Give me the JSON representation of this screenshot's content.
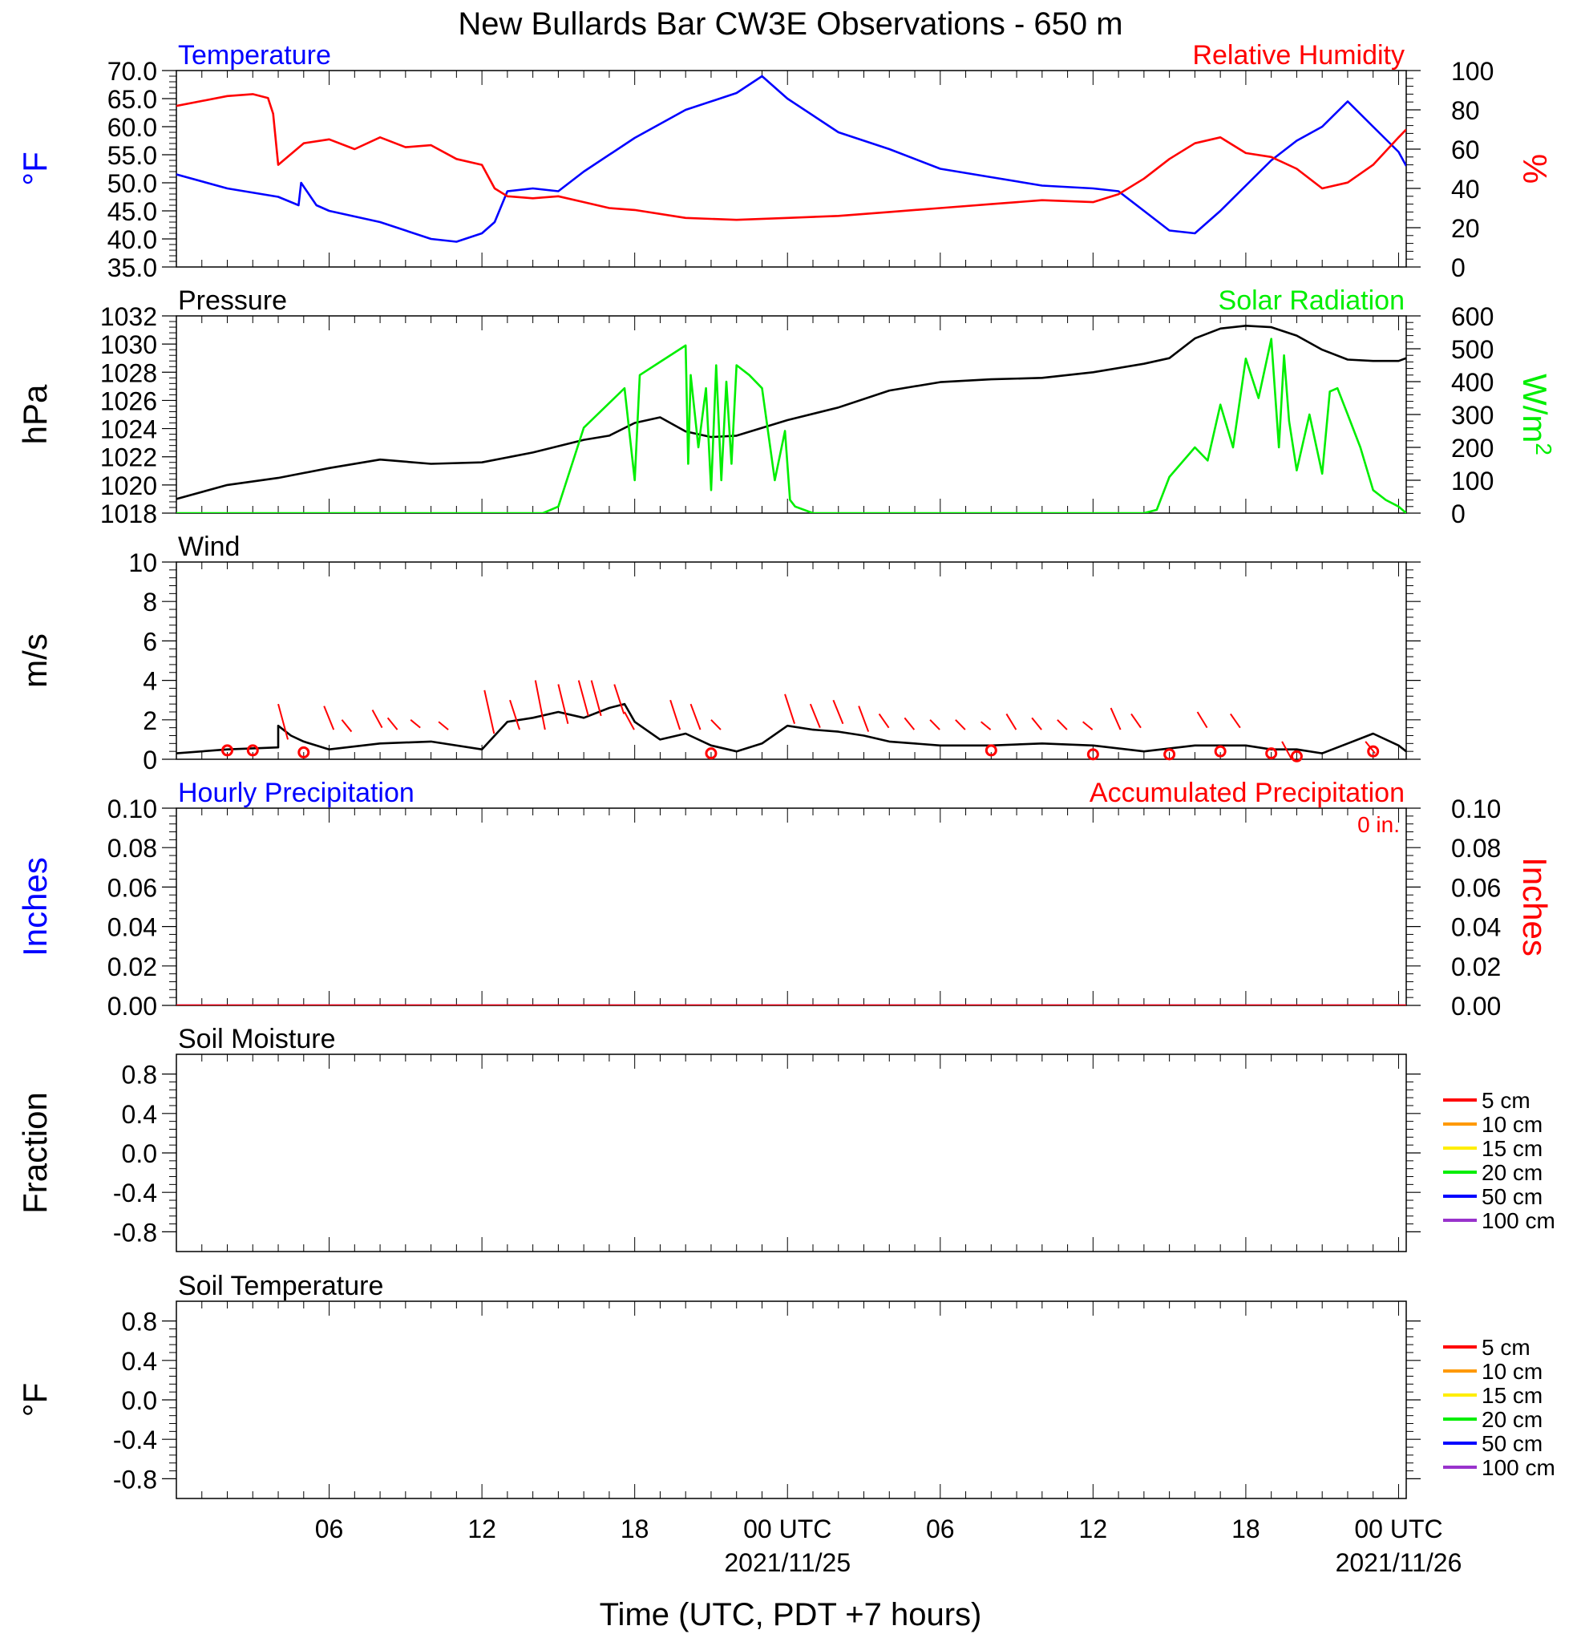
{
  "title": "New Bullards Bar CW3E Observations - 650 m",
  "xlabel": "Time (UTC, PDT +7 hours)",
  "x_ticks": [
    {
      "hour": 6,
      "label": "06",
      "date": ""
    },
    {
      "hour": 12,
      "label": "12",
      "date": ""
    },
    {
      "hour": 18,
      "label": "18",
      "date": ""
    },
    {
      "hour": 24,
      "label": "00 UTC",
      "date": "2021/11/25"
    },
    {
      "hour": 30,
      "label": "06",
      "date": ""
    },
    {
      "hour": 36,
      "label": "12",
      "date": ""
    },
    {
      "hour": 42,
      "label": "18",
      "date": ""
    },
    {
      "hour": 48,
      "label": "00 UTC",
      "date": "2021/11/26"
    }
  ],
  "colors": {
    "blue": "#0000ff",
    "red": "#ff0000",
    "green": "#00ee00",
    "black": "#000000"
  },
  "chart_data": [
    {
      "type": "line",
      "panel": "temperature-humidity",
      "x_range_hours": [
        0,
        48.3
      ],
      "left": {
        "title": "Temperature",
        "ylabel": "°F",
        "ylim": [
          35,
          70
        ],
        "ticks": [
          "35.0",
          "40.0",
          "45.0",
          "50.0",
          "55.0",
          "60.0",
          "65.0",
          "70.0"
        ]
      },
      "right": {
        "title": "Relative Humidity",
        "ylabel": "%",
        "ylim": [
          0,
          100
        ],
        "ticks": [
          "0",
          "20",
          "40",
          "60",
          "80",
          "100"
        ]
      },
      "series": [
        {
          "name": "Temperature",
          "axis": "left",
          "color": "#0000ff",
          "x": [
            0,
            2,
            4,
            4.8,
            4.9,
            5.5,
            6,
            8,
            10,
            11,
            12,
            12.5,
            13,
            14,
            15,
            16,
            18,
            20,
            22,
            23,
            24,
            26,
            28,
            30,
            32,
            34,
            36,
            37,
            38,
            39,
            40,
            41,
            42,
            43,
            44,
            45,
            46,
            47,
            48,
            48.3
          ],
          "y": [
            51.5,
            49,
            47.5,
            46,
            50,
            46,
            45,
            43,
            40,
            39.5,
            41,
            43,
            48.5,
            49,
            48.5,
            52,
            58,
            63,
            66,
            69,
            65,
            59,
            56,
            52.5,
            51,
            49.5,
            49,
            48.5,
            45,
            41.5,
            41,
            45,
            49.5,
            54,
            57.5,
            60,
            64.5,
            60,
            55.5,
            53
          ]
        },
        {
          "name": "Relative Humidity",
          "axis": "right",
          "color": "#ff0000",
          "x": [
            0,
            2,
            3,
            3.6,
            3.8,
            4,
            5,
            6,
            7,
            8,
            9,
            10,
            11,
            12,
            12.5,
            13,
            14,
            15,
            16,
            17,
            18,
            20,
            22,
            24,
            26,
            28,
            30,
            32,
            34,
            36,
            37,
            38,
            39,
            40,
            41,
            42,
            43,
            44,
            45,
            46,
            47,
            48,
            48.3
          ],
          "y": [
            82,
            87,
            88,
            86,
            78,
            52,
            63,
            65,
            60,
            66,
            61,
            62,
            55,
            52,
            40,
            36,
            35,
            36,
            33,
            30,
            29,
            25,
            24,
            25,
            26,
            28,
            30,
            32,
            34,
            33,
            37,
            45,
            55,
            63,
            66,
            58,
            56,
            50,
            40,
            43,
            52,
            66,
            70
          ]
        }
      ]
    },
    {
      "type": "line",
      "panel": "pressure-solar",
      "x_range_hours": [
        0,
        48.3
      ],
      "left": {
        "title": "Pressure",
        "ylabel": "hPa",
        "ylim": [
          1018,
          1032
        ],
        "ticks": [
          "1018",
          "1020",
          "1022",
          "1024",
          "1026",
          "1028",
          "1030",
          "1032"
        ]
      },
      "right": {
        "title": "Solar Radiation",
        "ylabel": "W/m",
        "ylabel_sup": "2",
        "ylim": [
          0,
          600
        ],
        "ticks": [
          "0",
          "100",
          "200",
          "300",
          "400",
          "500",
          "600"
        ]
      },
      "series": [
        {
          "name": "Pressure",
          "axis": "left",
          "color": "#000000",
          "x": [
            0,
            2,
            4,
            6,
            8,
            10,
            12,
            14,
            16,
            17,
            18,
            19,
            20,
            21,
            22,
            24,
            26,
            28,
            30,
            32,
            34,
            36,
            38,
            39,
            40,
            41,
            42,
            43,
            44,
            45,
            46,
            47,
            48,
            48.3
          ],
          "y": [
            1019,
            1020,
            1020.5,
            1021.2,
            1021.8,
            1021.5,
            1021.6,
            1022.3,
            1023.2,
            1023.5,
            1024.4,
            1024.8,
            1023.8,
            1023.4,
            1023.5,
            1024.6,
            1025.5,
            1026.7,
            1027.3,
            1027.5,
            1027.6,
            1028,
            1028.6,
            1029,
            1030.4,
            1031.1,
            1031.3,
            1031.2,
            1030.6,
            1029.6,
            1028.9,
            1028.8,
            1028.8,
            1029
          ]
        },
        {
          "name": "Solar Radiation",
          "axis": "right",
          "color": "#00ee00",
          "x": [
            0,
            14.4,
            15,
            16,
            17.6,
            17.9,
            18,
            18.2,
            19,
            20,
            20.1,
            20.2,
            20.5,
            20.8,
            21,
            21.2,
            21.4,
            21.6,
            21.8,
            22,
            22.5,
            23,
            23.5,
            23.9,
            24.1,
            24.3,
            25,
            30,
            36,
            38,
            38.5,
            39,
            40,
            40.5,
            41,
            41.5,
            42,
            42.5,
            43,
            43.3,
            43.5,
            43.7,
            44,
            44.5,
            45,
            45.3,
            45.6,
            46,
            46.5,
            47,
            47.5,
            48,
            48.3
          ],
          "y": [
            0,
            0,
            20,
            260,
            380,
            170,
            100,
            420,
            460,
            510,
            150,
            420,
            200,
            380,
            70,
            450,
            100,
            400,
            150,
            450,
            420,
            380,
            100,
            250,
            40,
            20,
            0,
            0,
            0,
            0,
            10,
            110,
            200,
            160,
            330,
            200,
            470,
            350,
            530,
            200,
            480,
            280,
            130,
            300,
            120,
            370,
            380,
            300,
            200,
            70,
            40,
            20,
            0
          ]
        }
      ]
    },
    {
      "type": "line",
      "panel": "wind",
      "x_range_hours": [
        0,
        48.3
      ],
      "left": {
        "title": "Wind",
        "ylabel": "m/s",
        "ylim": [
          0,
          10
        ],
        "ticks": [
          "0",
          "2",
          "4",
          "6",
          "8",
          "10"
        ]
      },
      "series": [
        {
          "name": "Wind",
          "axis": "left",
          "color": "#000000",
          "x": [
            0,
            2,
            4,
            4,
            4.5,
            5,
            6,
            8,
            10,
            12,
            12.5,
            13,
            14,
            15,
            16,
            17,
            17.6,
            18,
            19,
            20,
            21,
            22,
            23,
            24,
            25,
            26,
            27,
            28,
            30,
            32,
            34,
            36,
            38,
            40,
            42,
            43,
            44,
            45,
            46,
            47,
            48,
            48.3
          ],
          "y": [
            0.3,
            0.5,
            0.6,
            1.7,
            1.2,
            0.9,
            0.5,
            0.8,
            0.9,
            0.5,
            1.2,
            1.9,
            2.1,
            2.4,
            2.1,
            2.6,
            2.8,
            1.9,
            1.0,
            1.3,
            0.7,
            0.4,
            0.8,
            1.7,
            1.5,
            1.4,
            1.2,
            0.9,
            0.7,
            0.7,
            0.8,
            0.7,
            0.4,
            0.7,
            0.7,
            0.5,
            0.5,
            0.3,
            0.8,
            1.3,
            0.7,
            0.4
          ]
        }
      ],
      "circles": [
        [
          2,
          0.45
        ],
        [
          3,
          0.45
        ],
        [
          5,
          0.35
        ],
        [
          21,
          0.3
        ],
        [
          32,
          0.45
        ],
        [
          36,
          0.25
        ],
        [
          39,
          0.25
        ],
        [
          41,
          0.4
        ],
        [
          43,
          0.3
        ],
        [
          44,
          0.15
        ],
        [
          47,
          0.4
        ]
      ],
      "barbs": [
        [
          4,
          2.8,
          1.0
        ],
        [
          5.8,
          2.7,
          1.5
        ],
        [
          6.5,
          2.0,
          1.4
        ],
        [
          7.7,
          2.5,
          1.6
        ],
        [
          8.3,
          2.1,
          1.5
        ],
        [
          9.2,
          2.0,
          1.6
        ],
        [
          10.3,
          1.9,
          1.5
        ],
        [
          12.1,
          3.5,
          1.3
        ],
        [
          13.1,
          3.0,
          1.5
        ],
        [
          14.1,
          4.0,
          1.5
        ],
        [
          15.0,
          3.8,
          1.8
        ],
        [
          15.8,
          4.0,
          2.2
        ],
        [
          16.3,
          4.0,
          2.2
        ],
        [
          17.2,
          3.8,
          2.3
        ],
        [
          17.6,
          2.4,
          1.5
        ],
        [
          19.4,
          3.0,
          1.5
        ],
        [
          20.2,
          2.8,
          1.5
        ],
        [
          21,
          2.0,
          1.5
        ],
        [
          23.9,
          3.3,
          1.8
        ],
        [
          24.9,
          2.8,
          1.6
        ],
        [
          25.8,
          3.0,
          1.8
        ],
        [
          26.8,
          2.7,
          1.4
        ],
        [
          27.6,
          2.3,
          1.6
        ],
        [
          28.6,
          2.1,
          1.5
        ],
        [
          29.6,
          2.0,
          1.5
        ],
        [
          30.6,
          2.0,
          1.5
        ],
        [
          31.6,
          1.9,
          1.5
        ],
        [
          32.6,
          2.3,
          1.5
        ],
        [
          33.6,
          2.1,
          1.5
        ],
        [
          34.6,
          2.0,
          1.5
        ],
        [
          35.6,
          1.9,
          1.5
        ],
        [
          36.7,
          2.6,
          1.5
        ],
        [
          37.5,
          2.3,
          1.6
        ],
        [
          40.1,
          2.4,
          1.6
        ],
        [
          41.4,
          2.3,
          1.6
        ],
        [
          43.8,
          0.0,
          0.9
        ],
        [
          46.7,
          0.9,
          0.3
        ]
      ]
    },
    {
      "type": "line",
      "panel": "precipitation",
      "x_range_hours": [
        0,
        48.3
      ],
      "left": {
        "title": "Hourly Precipitation",
        "ylabel": "Inches",
        "ylim": [
          0,
          0.1
        ],
        "ticks": [
          "0.00",
          "0.02",
          "0.04",
          "0.06",
          "0.08",
          "0.10"
        ]
      },
      "right": {
        "title": "Accumulated Precipitation",
        "ylabel": "Inches",
        "ylim": [
          0,
          0.1
        ],
        "ticks": [
          "0.00",
          "0.02",
          "0.04",
          "0.06",
          "0.08",
          "0.10"
        ]
      },
      "annotation": "0 in.",
      "series": [
        {
          "name": "Hourly Precipitation",
          "axis": "left",
          "color": "#0000ff",
          "x": [
            0,
            48.3
          ],
          "y": [
            0,
            0
          ]
        },
        {
          "name": "Accumulated Precipitation",
          "axis": "right",
          "color": "#ff0000",
          "x": [
            0,
            48.3
          ],
          "y": [
            0,
            0
          ]
        }
      ]
    },
    {
      "type": "line",
      "panel": "soil-moisture",
      "x_range_hours": [
        0,
        48.3
      ],
      "left": {
        "title": "Soil Moisture",
        "ylabel": "Fraction",
        "ylim": [
          -1,
          1
        ],
        "ticks": [
          "-0.8",
          "-0.4",
          "0.0",
          "0.4",
          "0.8"
        ]
      },
      "legend": [
        {
          "label": "5 cm",
          "color": "#ff0000"
        },
        {
          "label": "10 cm",
          "color": "#ff9900"
        },
        {
          "label": "15 cm",
          "color": "#ffee00"
        },
        {
          "label": "20 cm",
          "color": "#00ee00"
        },
        {
          "label": "50 cm",
          "color": "#0000ff"
        },
        {
          "label": "100 cm",
          "color": "#9933cc"
        }
      ],
      "series": []
    },
    {
      "type": "line",
      "panel": "soil-temperature",
      "x_range_hours": [
        0,
        48.3
      ],
      "left": {
        "title": "Soil Temperature",
        "ylabel": "°F",
        "ylim": [
          -1,
          1
        ],
        "ticks": [
          "-0.8",
          "-0.4",
          "0.0",
          "0.4",
          "0.8"
        ]
      },
      "legend": [
        {
          "label": "5 cm",
          "color": "#ff0000"
        },
        {
          "label": "10 cm",
          "color": "#ff9900"
        },
        {
          "label": "15 cm",
          "color": "#ffee00"
        },
        {
          "label": "20 cm",
          "color": "#00ee00"
        },
        {
          "label": "50 cm",
          "color": "#0000ff"
        },
        {
          "label": "100 cm",
          "color": "#9933cc"
        }
      ],
      "series": []
    }
  ]
}
